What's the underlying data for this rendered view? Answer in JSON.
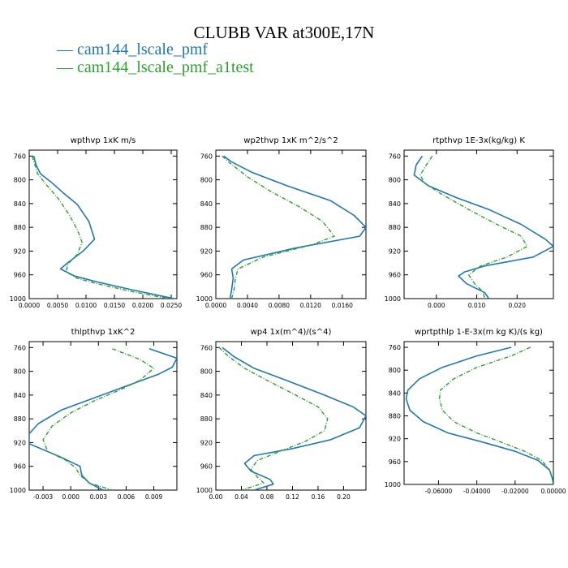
{
  "figure": {
    "title": "CLUBB VAR at300E,17N",
    "legend": [
      {
        "label": "cam144_lscale_pmf",
        "color": "#1f77b4",
        "style": "solid"
      },
      {
        "label": "cam144_lscale_pmf_a1test",
        "color": "#2ca02c",
        "style": "dashdot"
      }
    ]
  },
  "chart_data": [
    {
      "type": "line",
      "title": "wpthvp  1xK m/s",
      "xlim": [
        0.0,
        0.026
      ],
      "ylim": [
        1000,
        750
      ],
      "xticks": [
        "0.0000",
        "0.0050",
        "0.0100",
        "0.0150",
        "0.0200",
        "0.0250"
      ],
      "xtick_values": [
        0.0,
        0.005,
        0.01,
        0.015,
        0.02,
        0.025
      ],
      "yticks": [
        760,
        800,
        840,
        880,
        920,
        960,
        1000
      ],
      "series": [
        {
          "name": "cam144_lscale_pmf",
          "points": [
            [
              0.0008,
              760
            ],
            [
              0.0012,
              775
            ],
            [
              0.002,
              790
            ],
            [
              0.004,
              805
            ],
            [
              0.006,
              822
            ],
            [
              0.0085,
              842
            ],
            [
              0.0105,
              870
            ],
            [
              0.0115,
              900
            ],
            [
              0.0095,
              920
            ],
            [
              0.007,
              938
            ],
            [
              0.0055,
              950
            ],
            [
              0.008,
              962
            ],
            [
              0.012,
              972
            ],
            [
              0.018,
              985
            ],
            [
              0.0255,
              1000
            ]
          ]
        },
        {
          "name": "cam144_lscale_pmf_a1test",
          "points": [
            [
              0.0005,
              760
            ],
            [
              0.001,
              775
            ],
            [
              0.0015,
              790
            ],
            [
              0.003,
              808
            ],
            [
              0.005,
              830
            ],
            [
              0.007,
              858
            ],
            [
              0.0085,
              885
            ],
            [
              0.0093,
              905
            ],
            [
              0.0085,
              925
            ],
            [
              0.0068,
              942
            ],
            [
              0.0065,
              955
            ],
            [
              0.0085,
              966
            ],
            [
              0.012,
              975
            ],
            [
              0.018,
              988
            ],
            [
              0.0245,
              1000
            ]
          ]
        }
      ]
    },
    {
      "type": "line",
      "title": "wp2thvp  1xK m^2/s^2",
      "xlim": [
        0.0,
        0.019
      ],
      "ylim": [
        1000,
        750
      ],
      "xticks": [
        "0.0000",
        "0.0040",
        "0.0080",
        "0.0120",
        "0.0160"
      ],
      "xtick_values": [
        0.0,
        0.004,
        0.008,
        0.012,
        0.016
      ],
      "yticks": [
        760,
        800,
        840,
        880,
        920,
        960,
        1000
      ],
      "series": [
        {
          "name": "cam144_lscale_pmf",
          "points": [
            [
              0.001,
              760
            ],
            [
              0.002,
              770
            ],
            [
              0.0045,
              787
            ],
            [
              0.009,
              810
            ],
            [
              0.0145,
              835
            ],
            [
              0.0175,
              860
            ],
            [
              0.019,
              880
            ],
            [
              0.0182,
              895
            ],
            [
              0.01,
              915
            ],
            [
              0.0035,
              935
            ],
            [
              0.002,
              950
            ],
            [
              0.0022,
              965
            ],
            [
              0.002,
              985
            ],
            [
              0.0018,
              1000
            ]
          ]
        },
        {
          "name": "cam144_lscale_pmf_a1test",
          "points": [
            [
              0.0008,
              760
            ],
            [
              0.0018,
              772
            ],
            [
              0.004,
              795
            ],
            [
              0.007,
              820
            ],
            [
              0.0105,
              845
            ],
            [
              0.0135,
              870
            ],
            [
              0.015,
              895
            ],
            [
              0.012,
              910
            ],
            [
              0.006,
              930
            ],
            [
              0.0028,
              950
            ],
            [
              0.0025,
              965
            ],
            [
              0.0023,
              985
            ],
            [
              0.002,
              1000
            ]
          ]
        }
      ]
    },
    {
      "type": "line",
      "title": "rtpthvp  1E-3x(kg/kg) K",
      "xlim": [
        -0.008,
        0.029
      ],
      "ylim": [
        1000,
        750
      ],
      "xticks": [
        "0.000",
        "0.010",
        "0.020"
      ],
      "xtick_values": [
        0.0,
        0.01,
        0.02
      ],
      "yticks": [
        760,
        800,
        840,
        880,
        920,
        960,
        1000
      ],
      "series": [
        {
          "name": "cam144_lscale_pmf",
          "points": [
            [
              -0.0035,
              760
            ],
            [
              -0.005,
              775
            ],
            [
              -0.0055,
              792
            ],
            [
              -0.002,
              810
            ],
            [
              0.005,
              830
            ],
            [
              0.013,
              850
            ],
            [
              0.021,
              875
            ],
            [
              0.027,
              900
            ],
            [
              0.029,
              912
            ],
            [
              0.024,
              930
            ],
            [
              0.012,
              945
            ],
            [
              0.007,
              955
            ],
            [
              0.0055,
              962
            ],
            [
              0.0075,
              975
            ],
            [
              0.012,
              990
            ],
            [
              0.013,
              1000
            ]
          ]
        },
        {
          "name": "cam144_lscale_pmf_a1test",
          "points": [
            [
              -0.001,
              760
            ],
            [
              -0.0025,
              775
            ],
            [
              -0.004,
              792
            ],
            [
              -0.003,
              805
            ],
            [
              0.0015,
              825
            ],
            [
              0.008,
              850
            ],
            [
              0.015,
              875
            ],
            [
              0.021,
              895
            ],
            [
              0.0225,
              912
            ],
            [
              0.0175,
              930
            ],
            [
              0.011,
              945
            ],
            [
              0.008,
              960
            ],
            [
              0.0095,
              975
            ],
            [
              0.0115,
              988
            ],
            [
              0.012,
              1000
            ]
          ]
        }
      ]
    },
    {
      "type": "line",
      "title": "thlpthvp  1xK^2",
      "xlim": [
        -0.0045,
        0.0115
      ],
      "ylim": [
        1000,
        750
      ],
      "xticks": [
        "-0.003",
        "0.000",
        "0.003",
        "0.006",
        "0.009"
      ],
      "xtick_values": [
        -0.003,
        0.0,
        0.003,
        0.006,
        0.009
      ],
      "yticks": [
        760,
        800,
        840,
        880,
        920,
        960,
        1000
      ],
      "series": [
        {
          "name": "cam144_lscale_pmf",
          "points": [
            [
              0.0085,
              762
            ],
            [
              0.0115,
              778
            ],
            [
              0.011,
              793
            ],
            [
              0.0095,
              805
            ],
            [
              0.0065,
              822
            ],
            [
              0.0025,
              845
            ],
            [
              -0.001,
              865
            ],
            [
              -0.0035,
              888
            ],
            [
              -0.0045,
              905
            ],
            [
              -0.0045,
              922
            ],
            [
              -0.001,
              945
            ],
            [
              0.001,
              960
            ],
            [
              0.0012,
              975
            ],
            [
              0.002,
              988
            ],
            [
              0.0035,
              1000
            ]
          ]
        },
        {
          "name": "cam144_lscale_pmf_a1test",
          "points": [
            [
              0.0045,
              762
            ],
            [
              0.0075,
              780
            ],
            [
              0.009,
              795
            ],
            [
              0.0075,
              815
            ],
            [
              0.0055,
              830
            ],
            [
              0.0025,
              850
            ],
            [
              0.0,
              870
            ],
            [
              -0.002,
              892
            ],
            [
              -0.003,
              915
            ],
            [
              -0.0025,
              935
            ],
            [
              -0.0005,
              950
            ],
            [
              0.0005,
              962
            ],
            [
              0.001,
              975
            ],
            [
              0.002,
              988
            ],
            [
              0.0045,
              1000
            ]
          ]
        }
      ]
    },
    {
      "type": "line",
      "title": "wp4  1x(m^4)/(s^4)",
      "xlim": [
        0.0,
        0.235
      ],
      "ylim": [
        1000,
        750
      ],
      "xticks": [
        "0.00",
        "0.04",
        "0.08",
        "0.12",
        "0.16",
        "0.20"
      ],
      "xtick_values": [
        0.0,
        0.04,
        0.08,
        0.12,
        0.16,
        0.2
      ],
      "yticks": [
        760,
        800,
        840,
        880,
        920,
        960,
        1000
      ],
      "series": [
        {
          "name": "cam144_lscale_pmf",
          "points": [
            [
              0.01,
              760
            ],
            [
              0.028,
              775
            ],
            [
              0.06,
              795
            ],
            [
              0.11,
              815
            ],
            [
              0.17,
              840
            ],
            [
              0.215,
              860
            ],
            [
              0.235,
              875
            ],
            [
              0.225,
              895
            ],
            [
              0.18,
              915
            ],
            [
              0.12,
              930
            ],
            [
              0.06,
              942
            ],
            [
              0.045,
              955
            ],
            [
              0.055,
              968
            ],
            [
              0.085,
              982
            ],
            [
              0.09,
              990
            ],
            [
              0.06,
              1000
            ]
          ]
        },
        {
          "name": "cam144_lscale_pmf_a1test",
          "points": [
            [
              0.005,
              760
            ],
            [
              0.02,
              775
            ],
            [
              0.045,
              795
            ],
            [
              0.08,
              815
            ],
            [
              0.125,
              840
            ],
            [
              0.16,
              860
            ],
            [
              0.175,
              880
            ],
            [
              0.17,
              900
            ],
            [
              0.14,
              918
            ],
            [
              0.1,
              935
            ],
            [
              0.065,
              950
            ],
            [
              0.055,
              965
            ],
            [
              0.065,
              978
            ],
            [
              0.075,
              988
            ],
            [
              0.04,
              1000
            ]
          ]
        }
      ]
    },
    {
      "type": "line",
      "title": "wprtpthlp  1-E-3x(m kg K)/(s kg)",
      "xlim": [
        -0.078,
        0.0
      ],
      "ylim": [
        1000,
        750
      ],
      "xticks": [
        "-0.06000",
        "-0.04000",
        "-0.02000",
        "0.00000"
      ],
      "xtick_values": [
        -0.06,
        -0.04,
        -0.02,
        0.0
      ],
      "yticks": [
        760,
        800,
        840,
        880,
        920,
        960,
        1000
      ],
      "series": [
        {
          "name": "cam144_lscale_pmf",
          "points": [
            [
              -0.022,
              760
            ],
            [
              -0.04,
              775
            ],
            [
              -0.058,
              795
            ],
            [
              -0.07,
              815
            ],
            [
              -0.076,
              835
            ],
            [
              -0.077,
              850
            ],
            [
              -0.075,
              870
            ],
            [
              -0.068,
              890
            ],
            [
              -0.055,
              910
            ],
            [
              -0.038,
              925
            ],
            [
              -0.02,
              942
            ],
            [
              -0.008,
              958
            ],
            [
              -0.002,
              975
            ],
            [
              -0.0005,
              990
            ],
            [
              0.0,
              1000
            ]
          ]
        },
        {
          "name": "cam144_lscale_pmf_a1test",
          "points": [
            [
              -0.012,
              760
            ],
            [
              -0.022,
              775
            ],
            [
              -0.04,
              795
            ],
            [
              -0.052,
              815
            ],
            [
              -0.059,
              835
            ],
            [
              -0.0595,
              850
            ],
            [
              -0.058,
              870
            ],
            [
              -0.052,
              890
            ],
            [
              -0.04,
              910
            ],
            [
              -0.028,
              925
            ],
            [
              -0.015,
              942
            ],
            [
              -0.006,
              958
            ],
            [
              -0.002,
              975
            ],
            [
              -0.0005,
              990
            ],
            [
              0.0,
              1000
            ]
          ]
        }
      ]
    }
  ]
}
